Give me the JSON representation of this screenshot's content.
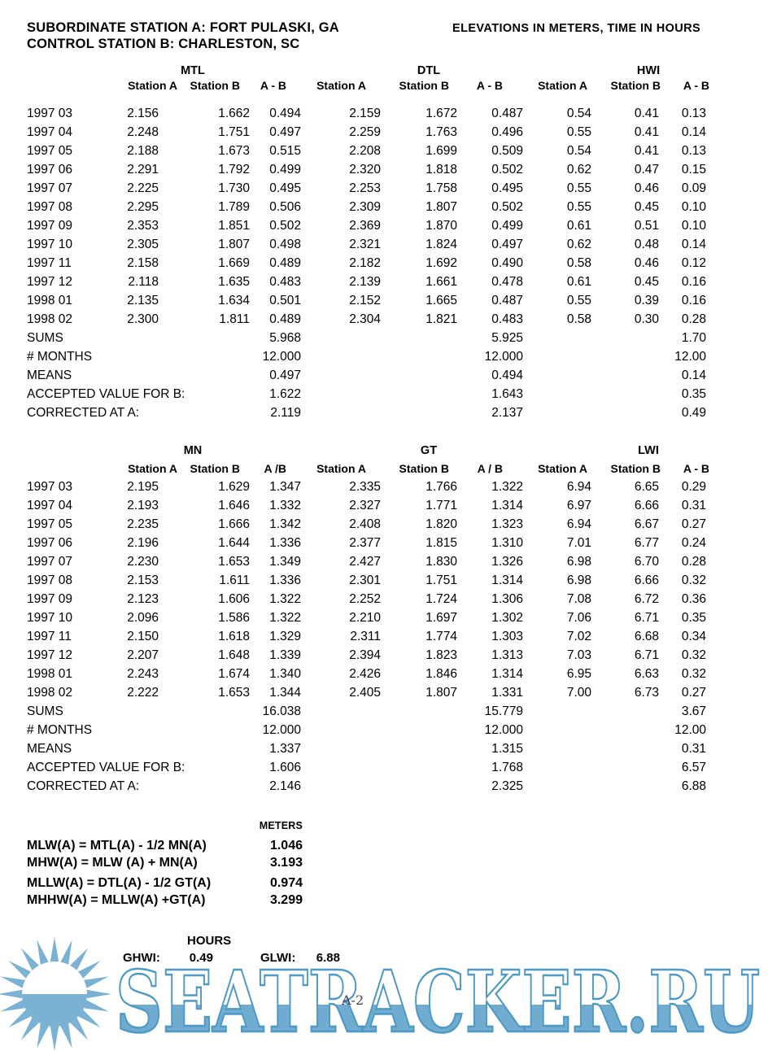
{
  "header": {
    "line1": "SUBORDINATE STATION A:  FORT PULASKI, GA",
    "line2": "CONTROL STATION B:  CHARLESTON, SC",
    "right": "ELEVATIONS IN METERS, TIME IN HOURS"
  },
  "table1": {
    "groups": [
      {
        "title": "MTL",
        "cols": [
          "Station A",
          "Station B",
          "A - B"
        ]
      },
      {
        "title": "DTL",
        "cols": [
          "Station A",
          "Station B",
          "A - B"
        ]
      },
      {
        "title": "HWI",
        "cols": [
          "Station A",
          "Station B",
          "A - B"
        ]
      }
    ],
    "rows": [
      {
        "label": "1997 03",
        "values": [
          "2.156",
          "1.662",
          "0.494",
          "2.159",
          "1.672",
          "0.487",
          "0.54",
          "0.41",
          "0.13"
        ]
      },
      {
        "label": "1997 04",
        "values": [
          "2.248",
          "1.751",
          "0.497",
          "2.259",
          "1.763",
          "0.496",
          "0.55",
          "0.41",
          "0.14"
        ]
      },
      {
        "label": "1997 05",
        "values": [
          "2.188",
          "1.673",
          "0.515",
          "2.208",
          "1.699",
          "0.509",
          "0.54",
          "0.41",
          "0.13"
        ]
      },
      {
        "label": "1997 06",
        "values": [
          "2.291",
          "1.792",
          "0.499",
          "2.320",
          "1.818",
          "0.502",
          "0.62",
          "0.47",
          "0.15"
        ]
      },
      {
        "label": "1997 07",
        "values": [
          "2.225",
          "1.730",
          "0.495",
          "2.253",
          "1.758",
          "0.495",
          "0.55",
          "0.46",
          "0.09"
        ]
      },
      {
        "label": "1997 08",
        "values": [
          "2.295",
          "1.789",
          "0.506",
          "2.309",
          "1.807",
          "0.502",
          "0.55",
          "0.45",
          "0.10"
        ]
      },
      {
        "label": "1997 09",
        "values": [
          "2.353",
          "1.851",
          "0.502",
          "2.369",
          "1.870",
          "0.499",
          "0.61",
          "0.51",
          "0.10"
        ]
      },
      {
        "label": "1997 10",
        "values": [
          "2.305",
          "1.807",
          "0.498",
          "2.321",
          "1.824",
          "0.497",
          "0.62",
          "0.48",
          "0.14"
        ]
      },
      {
        "label": "1997 11",
        "values": [
          "2.158",
          "1.669",
          "0.489",
          "2.182",
          "1.692",
          "0.490",
          "0.58",
          "0.46",
          "0.12"
        ]
      },
      {
        "label": "1997 12",
        "values": [
          "2.118",
          "1.635",
          "0.483",
          "2.139",
          "1.661",
          "0.478",
          "0.61",
          "0.45",
          "0.16"
        ]
      },
      {
        "label": "1998 01",
        "values": [
          "2.135",
          "1.634",
          "0.501",
          "2.152",
          "1.665",
          "0.487",
          "0.55",
          "0.39",
          "0.16"
        ]
      },
      {
        "label": "1998 02",
        "values": [
          "2.300",
          "1.811",
          "0.489",
          "2.304",
          "1.821",
          "0.483",
          "0.58",
          "0.30",
          "0.28"
        ]
      }
    ],
    "summary": [
      {
        "label": "SUMS",
        "values": [
          "5.968",
          "5.925",
          "1.70"
        ]
      },
      {
        "label": "# MONTHS",
        "values": [
          "12.000",
          "12.000",
          "12.00"
        ]
      },
      {
        "label": "MEANS",
        "values": [
          "0.497",
          "0.494",
          "0.14"
        ]
      },
      {
        "label": "ACCEPTED VALUE FOR B:",
        "values": [
          "1.622",
          "1.643",
          "0.35"
        ]
      },
      {
        "label": "CORRECTED AT A:",
        "values": [
          "2.119",
          "2.137",
          "0.49"
        ]
      }
    ]
  },
  "table2": {
    "groups": [
      {
        "title": "MN",
        "cols": [
          "Station A",
          "Station B",
          "A /B"
        ]
      },
      {
        "title": "GT",
        "cols": [
          "Station A",
          "Station B",
          "A / B"
        ]
      },
      {
        "title": "LWI",
        "cols": [
          "Station A",
          "Station B",
          "A - B"
        ]
      }
    ],
    "rows": [
      {
        "label": "1997 03",
        "values": [
          "2.195",
          "1.629",
          "1.347",
          "2.335",
          "1.766",
          "1.322",
          "6.94",
          "6.65",
          "0.29"
        ]
      },
      {
        "label": "1997 04",
        "values": [
          "2.193",
          "1.646",
          "1.332",
          "2.327",
          "1.771",
          "1.314",
          "6.97",
          "6.66",
          "0.31"
        ]
      },
      {
        "label": "1997 05",
        "values": [
          "2.235",
          "1.666",
          "1.342",
          "2.408",
          "1.820",
          "1.323",
          "6.94",
          "6.67",
          "0.27"
        ]
      },
      {
        "label": "1997 06",
        "values": [
          "2.196",
          "1.644",
          "1.336",
          "2.377",
          "1.815",
          "1.310",
          "7.01",
          "6.77",
          "0.24"
        ]
      },
      {
        "label": "1997 07",
        "values": [
          "2.230",
          "1.653",
          "1.349",
          "2.427",
          "1.830",
          "1.326",
          "6.98",
          "6.70",
          "0.28"
        ]
      },
      {
        "label": "1997 08",
        "values": [
          "2.153",
          "1.611",
          "1.336",
          "2.301",
          "1.751",
          "1.314",
          "6.98",
          "6.66",
          "0.32"
        ]
      },
      {
        "label": "1997 09",
        "values": [
          "2.123",
          "1.606",
          "1.322",
          "2.252",
          "1.724",
          "1.306",
          "7.08",
          "6.72",
          "0.36"
        ]
      },
      {
        "label": "1997 10",
        "values": [
          "2.096",
          "1.586",
          "1.322",
          "2.210",
          "1.697",
          "1.302",
          "7.06",
          "6.71",
          "0.35"
        ]
      },
      {
        "label": "1997 11",
        "values": [
          "2.150",
          "1.618",
          "1.329",
          "2.311",
          "1.774",
          "1.303",
          "7.02",
          "6.68",
          "0.34"
        ]
      },
      {
        "label": "1997 12",
        "values": [
          "2.207",
          "1.648",
          "1.339",
          "2.394",
          "1.823",
          "1.313",
          "7.03",
          "6.71",
          "0.32"
        ]
      },
      {
        "label": "1998 01",
        "values": [
          "2.243",
          "1.674",
          "1.340",
          "2.426",
          "1.846",
          "1.314",
          "6.95",
          "6.63",
          "0.32"
        ]
      },
      {
        "label": "1998 02",
        "values": [
          "2.222",
          "1.653",
          "1.344",
          "2.405",
          "1.807",
          "1.331",
          "7.00",
          "6.73",
          "0.27"
        ]
      }
    ],
    "summary": [
      {
        "label": "SUMS",
        "values": [
          "16.038",
          "15.779",
          "3.67"
        ]
      },
      {
        "label": "# MONTHS",
        "values": [
          "12.000",
          "12.000",
          "12.00"
        ]
      },
      {
        "label": "MEANS",
        "values": [
          "1.337",
          "1.315",
          "0.31"
        ]
      },
      {
        "label": "ACCEPTED VALUE FOR B:",
        "values": [
          "1.606",
          "1.768",
          "6.57"
        ]
      },
      {
        "label": "CORRECTED AT A:",
        "values": [
          "2.146",
          "2.325",
          "6.88"
        ]
      }
    ]
  },
  "datums": {
    "units_label": "METERS",
    "rows": [
      {
        "formula": "MLW(A) = MTL(A) - 1/2 MN(A)",
        "value": "1.046"
      },
      {
        "formula": "MHW(A) = MLW (A) + MN(A)",
        "value": "3.193"
      },
      {
        "formula": "MLLW(A) = DTL(A) - 1/2 GT(A)",
        "value": "0.974"
      },
      {
        "formula": "MHHW(A) = MLLW(A) +GT(A)",
        "value": "3.299"
      }
    ]
  },
  "hours": {
    "title": "HOURS",
    "ghwi_label": "GHWI:",
    "ghwi_value": "0.49",
    "glwi_label": "GLWI:",
    "glwi_value": "6.88"
  },
  "page_number": "A-2",
  "watermark": {
    "text": "SEATRACKER.RU",
    "blue": "#6FACD0",
    "outline": "#4E9AC4",
    "sun": "#7BB2D3"
  }
}
